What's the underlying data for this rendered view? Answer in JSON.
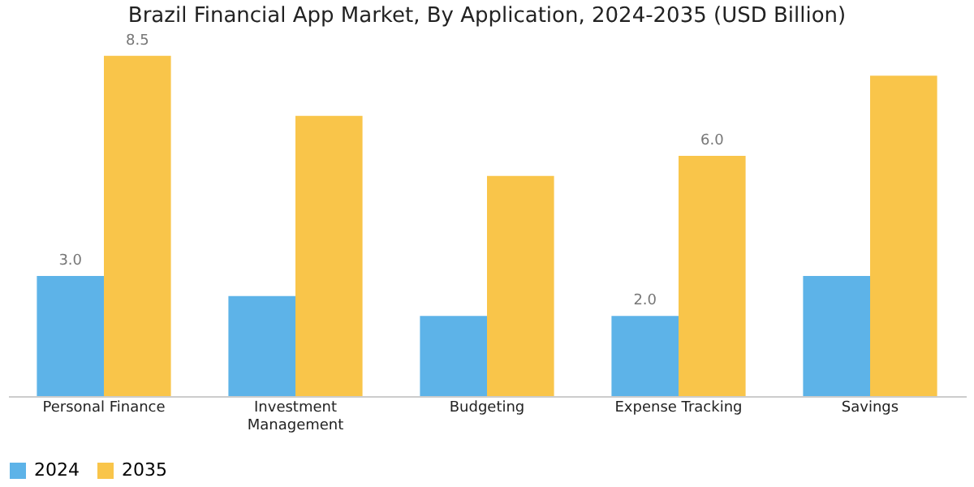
{
  "chart_data": {
    "type": "bar",
    "title": "Brazil Financial App Market, By Application, 2024-2035 (USD Billion)",
    "categories": [
      "Personal Finance",
      "Investment Management",
      "Budgeting",
      "Expense Tracking",
      "Savings"
    ],
    "series": [
      {
        "name": "2024",
        "color": "#5db3e8",
        "values": [
          3.0,
          2.5,
          2.0,
          2.0,
          3.0
        ],
        "value_labels": [
          "3.0",
          null,
          null,
          "2.0",
          null
        ]
      },
      {
        "name": "2035",
        "color": "#f9c54a",
        "values": [
          8.5,
          7.0,
          5.5,
          6.0,
          8.0
        ],
        "value_labels": [
          "8.5",
          null,
          null,
          "6.0",
          null
        ]
      }
    ],
    "legend": "bottom",
    "grid": false
  }
}
